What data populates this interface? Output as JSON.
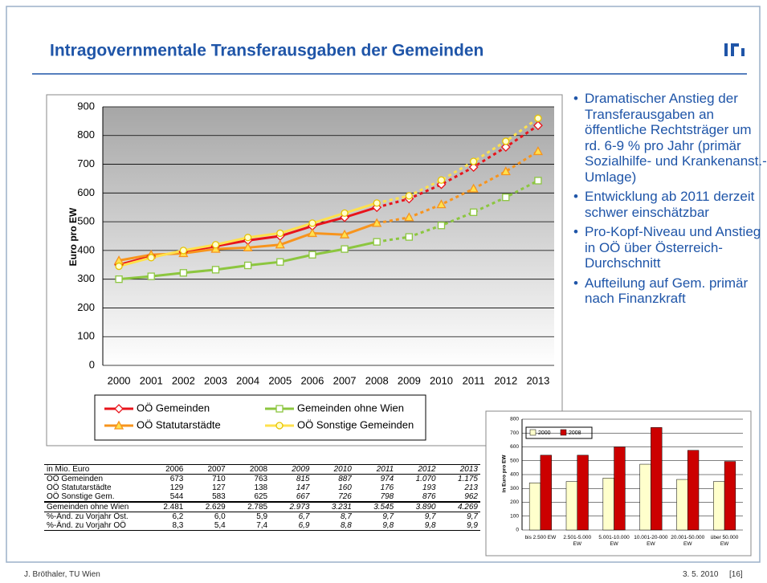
{
  "header": {
    "title": "Intragovernmentale Transferausgaben der Gemeinden"
  },
  "chart_data": [
    {
      "type": "line",
      "ylabel": "Euro pro EW",
      "categories": [
        "2000",
        "2001",
        "2002",
        "2003",
        "2004",
        "2005",
        "2006",
        "2007",
        "2008",
        "2009",
        "2010",
        "2011",
        "2012",
        "2013"
      ],
      "ylim": [
        0,
        900
      ],
      "yticks": [
        0,
        100,
        200,
        300,
        400,
        500,
        600,
        700,
        800,
        900
      ],
      "grid": true,
      "dashed_after": "2008",
      "series": [
        {
          "name": "OÖ Gemeinden",
          "color": "#e8141b",
          "marker": "diamond",
          "values": [
            350,
            380,
            395,
            415,
            435,
            450,
            485,
            515,
            550,
            580,
            630,
            690,
            760,
            835
          ]
        },
        {
          "name": "Gemeinden ohne Wien",
          "color": "#8cc63f",
          "marker": "square",
          "values": [
            300,
            310,
            322,
            333,
            348,
            360,
            385,
            405,
            430,
            447,
            487,
            533,
            585,
            643
          ]
        },
        {
          "name": "OÖ Statutarstädte",
          "color": "#f7941d",
          "marker": "triangle",
          "values": [
            365,
            385,
            390,
            405,
            410,
            420,
            460,
            455,
            495,
            515,
            560,
            615,
            675,
            745
          ]
        },
        {
          "name": "OÖ Sonstige Gemeinden",
          "color": "#ffe14d",
          "marker": "circle",
          "values": [
            345,
            375,
            400,
            420,
            445,
            460,
            495,
            530,
            565,
            590,
            645,
            710,
            780,
            860
          ]
        }
      ]
    },
    {
      "type": "bar",
      "ylabel": "in Euro pro EW",
      "categories": [
        "bis 2.500 EW",
        "2.501-5.000 EW",
        "5.001-10.000 EW",
        "10.001-20-000 EW",
        "20.001-50.000 EW",
        "über 50.000 EW"
      ],
      "ylim": [
        0,
        800
      ],
      "yticks": [
        0,
        100,
        200,
        300,
        400,
        500,
        600,
        700,
        800
      ],
      "grid": true,
      "series": [
        {
          "name": "2000",
          "color": "#ffffcc",
          "values": [
            340,
            350,
            375,
            475,
            365,
            350
          ]
        },
        {
          "name": "2008",
          "color": "#cc0000",
          "values": [
            540,
            540,
            600,
            740,
            575,
            495
          ]
        }
      ]
    }
  ],
  "bullets": [
    "Dramatischer Anstieg der Transferausgaben an öffentliche Rechtsträger um rd. 6-9 % pro Jahr (primär Sozialhilfe- und Krankenanst.-Umlage)",
    "Entwicklung ab 2011 derzeit schwer einschätzbar",
    "Pro-Kopf-Niveau und Anstieg in OÖ über Österreich-Durchschnitt",
    "Aufteilung auf Gem. primär nach Finanzkraft"
  ],
  "table": {
    "rows": [
      [
        "in Mio. Euro",
        "2006",
        "2007",
        "2008",
        "2009",
        "2010",
        "2011",
        "2012",
        "2013"
      ],
      [
        "OÖ Gemeinden",
        "673",
        "710",
        "763",
        "815",
        "887",
        "974",
        "1.070",
        "1.175"
      ],
      [
        "OÖ Statutarstädte",
        "129",
        "127",
        "138",
        "147",
        "160",
        "176",
        "193",
        "213"
      ],
      [
        "OÖ Sonstige Gem.",
        "544",
        "583",
        "625",
        "667",
        "726",
        "798",
        "876",
        "962"
      ],
      [
        "Gemeinden ohne Wien",
        "2.481",
        "2.629",
        "2.785",
        "2.973",
        "3.231",
        "3.545",
        "3.890",
        "4.269"
      ],
      [
        "%-Änd. zu Vorjahr Öst.",
        "6,2",
        "6,0",
        "5,9",
        "6,7",
        "8,7",
        "9,7",
        "9,7",
        "9,7"
      ],
      [
        "%-Änd. zu Vorjahr OÖ",
        "8,3",
        "5,4",
        "7,4",
        "6,9",
        "8,8",
        "9,8",
        "9,8",
        "9,9"
      ]
    ]
  },
  "footer": {
    "author": "J. Bröthaler, TU Wien",
    "date": "3. 5. 2010",
    "page": "[16]"
  }
}
